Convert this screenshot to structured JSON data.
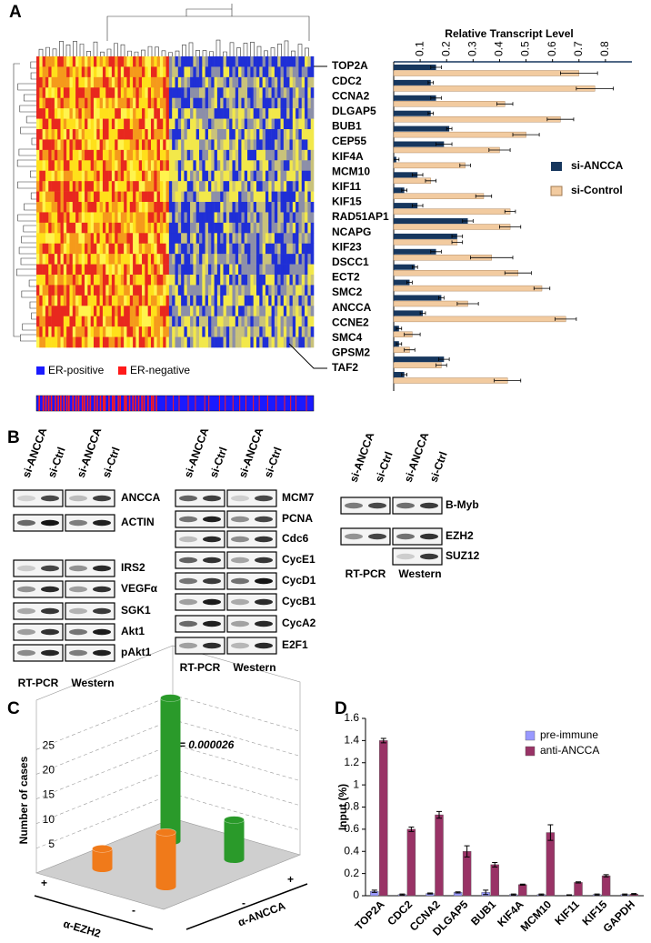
{
  "panel_labels": [
    "A",
    "B",
    "C",
    "D"
  ],
  "heatmap": {
    "legend": [
      "ER-positive",
      "ER-negative"
    ],
    "legend_colors": [
      "#1a1aff",
      "#ff1a1a"
    ]
  },
  "blots": {
    "groups": [
      {
        "lanes": [
          "si-ANCCA",
          "si-Ctrl",
          "si-ANCCA",
          "si-Ctrl"
        ],
        "methods": [
          "RT-PCR",
          "Western"
        ],
        "rows": [
          "ANCCA",
          "ACTIN",
          "IRS2",
          "VEGFα",
          "SGK1",
          "Akt1",
          "pAkt1"
        ]
      },
      {
        "lanes": [
          "si-ANCCA",
          "si-Ctrl",
          "si-ANCCA",
          "si-Ctrl"
        ],
        "methods": [
          "RT-PCR",
          "Western"
        ],
        "rows": [
          "MCM7",
          "PCNA",
          "Cdc6",
          "CycE1",
          "CycD1",
          "CycB1",
          "CycA2",
          "E2F1"
        ]
      },
      {
        "lanes": [
          "si-ANCCA",
          "si-Ctrl",
          "si-ANCCA",
          "si-Ctrl"
        ],
        "methods": [
          "RT-PCR",
          "Western"
        ],
        "rows": [
          "B-Myb",
          "EZH2",
          "SUZ12"
        ]
      }
    ]
  },
  "chart_data": [
    {
      "type": "hbar",
      "title": "Relative Transcript Level",
      "categories": [
        "TOP2A",
        "CDC2",
        "CCNA2",
        "DLGAP5",
        "BUB1",
        "CEP55",
        "KIF4A",
        "MCM10",
        "KIF11",
        "KIF15",
        "RAD51AP1",
        "NCAPG",
        "KIF23",
        "DSCC1",
        "ECT2",
        "SMC2",
        "ANCCA",
        "CCNE2",
        "SMC4",
        "GPSM2",
        "TAF2"
      ],
      "series": [
        {
          "name": "si-ANCCA",
          "color": "#17375e",
          "values": [
            0.16,
            0.14,
            0.16,
            0.14,
            0.21,
            0.19,
            0.01,
            0.09,
            0.04,
            0.09,
            0.28,
            0.24,
            0.16,
            0.08,
            0.06,
            0.18,
            0.11,
            0.02,
            0.02,
            0.19,
            0.04
          ],
          "errors": [
            0.02,
            0.01,
            0.02,
            0.01,
            0.01,
            0.03,
            0.01,
            0.02,
            0.01,
            0.02,
            0.02,
            0.02,
            0.02,
            0.01,
            0.01,
            0.01,
            0.01,
            0.01,
            0.01,
            0.02,
            0.01
          ]
        },
        {
          "name": "si-Control",
          "color": "#f2cba0",
          "values": [
            0.7,
            0.76,
            0.42,
            0.63,
            0.5,
            0.4,
            0.27,
            0.14,
            0.34,
            0.44,
            0.44,
            0.24,
            0.37,
            0.47,
            0.56,
            0.28,
            0.65,
            0.07,
            0.06,
            0.18,
            0.43
          ],
          "errors": [
            0.07,
            0.07,
            0.03,
            0.05,
            0.05,
            0.04,
            0.02,
            0.02,
            0.03,
            0.02,
            0.04,
            0.02,
            0.08,
            0.05,
            0.03,
            0.04,
            0.04,
            0.03,
            0.02,
            0.02,
            0.05
          ]
        }
      ],
      "xlim": [
        0,
        0.9
      ],
      "xticks": [
        0.1,
        0.2,
        0.3,
        0.4,
        0.5,
        0.6,
        0.7,
        0.8
      ],
      "legend": "right"
    },
    {
      "type": "bar3d",
      "ylabel": "Number of cases",
      "annotation": "P = 0.000026",
      "x_label": "α-EZH2",
      "z_label": "α-ANCCA",
      "categories": [
        "+",
        "-"
      ],
      "series": [
        {
          "name": "+",
          "values": [
            29,
            8
          ],
          "colors": [
            "#2a9a2a",
            "#2a9a2a"
          ]
        },
        {
          "name": "-",
          "values": [
            4,
            11
          ],
          "colors": [
            "#f07a1a",
            "#f07a1a"
          ]
        }
      ],
      "ylim": [
        0,
        35
      ],
      "yticks": [
        5,
        10,
        15,
        20,
        25
      ]
    },
    {
      "type": "bar",
      "ylabel": "Input (%)",
      "categories": [
        "TOP2A",
        "CDC2",
        "CCNA2",
        "DLGAP5",
        "BUB1",
        "KIF4A",
        "MCM10",
        "KIF11",
        "KIF15",
        "GAPDH"
      ],
      "series": [
        {
          "name": "pre-immune",
          "color": "#9999ff",
          "values": [
            0.04,
            0.01,
            0.02,
            0.03,
            0.03,
            0.01,
            0.01,
            0.005,
            0.01,
            0.01
          ],
          "errors": [
            0.01,
            0.005,
            0.005,
            0.005,
            0.02,
            0.005,
            0.005,
            0.003,
            0.005,
            0.005
          ]
        },
        {
          "name": "anti-ANCCA",
          "color": "#993366",
          "values": [
            1.4,
            0.6,
            0.73,
            0.4,
            0.28,
            0.1,
            0.57,
            0.12,
            0.18,
            0.015
          ],
          "errors": [
            0.02,
            0.02,
            0.03,
            0.05,
            0.02,
            0.005,
            0.07,
            0.005,
            0.01,
            0.005
          ]
        }
      ],
      "ylim": [
        0,
        1.6
      ],
      "yticks": [
        0,
        0.2,
        0.4,
        0.6,
        0.8,
        1,
        1.2,
        1.4,
        1.6
      ],
      "legend": "upper right"
    }
  ]
}
